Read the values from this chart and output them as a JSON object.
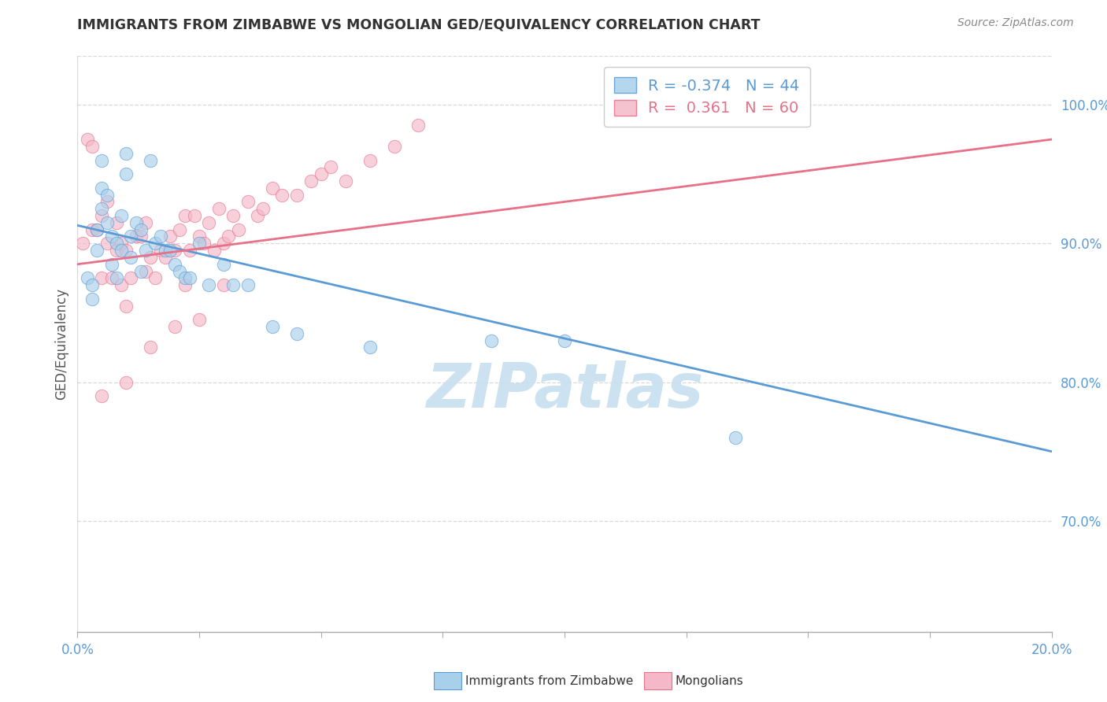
{
  "title": "IMMIGRANTS FROM ZIMBABWE VS MONGOLIAN GED/EQUIVALENCY CORRELATION CHART",
  "source": "Source: ZipAtlas.com",
  "ylabel": "GED/Equivalency",
  "ytick_labels": [
    "100.0%",
    "90.0%",
    "80.0%",
    "70.0%"
  ],
  "ytick_values": [
    1.0,
    0.9,
    0.8,
    0.7
  ],
  "xlim": [
    0.0,
    0.2
  ],
  "ylim": [
    0.62,
    1.035
  ],
  "legend_blue_label": "Immigrants from Zimbabwe",
  "legend_pink_label": "Mongolians",
  "legend_blue_R": "R = -0.374",
  "legend_blue_N": "N = 44",
  "legend_pink_R": "R =  0.361",
  "legend_pink_N": "N = 60",
  "blue_color": "#a8d0eb",
  "pink_color": "#f4b8c8",
  "trendline_blue_color": "#5b9bd5",
  "trendline_pink_color": "#e8718a",
  "watermark": "ZIPatlas",
  "watermark_color": "#c8dff0",
  "blue_scatter_x": [
    0.002,
    0.003,
    0.003,
    0.004,
    0.004,
    0.005,
    0.005,
    0.005,
    0.006,
    0.006,
    0.007,
    0.007,
    0.008,
    0.008,
    0.009,
    0.009,
    0.01,
    0.01,
    0.011,
    0.011,
    0.012,
    0.013,
    0.013,
    0.014,
    0.015,
    0.016,
    0.017,
    0.018,
    0.019,
    0.02,
    0.021,
    0.022,
    0.023,
    0.025,
    0.027,
    0.03,
    0.032,
    0.035,
    0.04,
    0.045,
    0.06,
    0.085,
    0.1,
    0.135
  ],
  "blue_scatter_y": [
    0.875,
    0.87,
    0.86,
    0.91,
    0.895,
    0.94,
    0.925,
    0.96,
    0.935,
    0.915,
    0.905,
    0.885,
    0.9,
    0.875,
    0.92,
    0.895,
    0.965,
    0.95,
    0.905,
    0.89,
    0.915,
    0.91,
    0.88,
    0.895,
    0.96,
    0.9,
    0.905,
    0.895,
    0.895,
    0.885,
    0.88,
    0.875,
    0.875,
    0.9,
    0.87,
    0.885,
    0.87,
    0.87,
    0.84,
    0.835,
    0.825,
    0.83,
    0.83,
    0.76
  ],
  "pink_scatter_x": [
    0.001,
    0.002,
    0.003,
    0.003,
    0.004,
    0.005,
    0.005,
    0.006,
    0.006,
    0.007,
    0.008,
    0.008,
    0.009,
    0.009,
    0.01,
    0.01,
    0.011,
    0.012,
    0.013,
    0.014,
    0.014,
    0.015,
    0.016,
    0.017,
    0.018,
    0.019,
    0.02,
    0.021,
    0.022,
    0.022,
    0.023,
    0.024,
    0.025,
    0.026,
    0.027,
    0.028,
    0.029,
    0.03,
    0.031,
    0.032,
    0.033,
    0.035,
    0.037,
    0.038,
    0.04,
    0.042,
    0.045,
    0.048,
    0.05,
    0.052,
    0.055,
    0.06,
    0.065,
    0.07,
    0.03,
    0.025,
    0.02,
    0.015,
    0.01,
    0.005
  ],
  "pink_scatter_y": [
    0.9,
    0.975,
    0.91,
    0.97,
    0.91,
    0.875,
    0.92,
    0.9,
    0.93,
    0.875,
    0.895,
    0.915,
    0.87,
    0.9,
    0.855,
    0.895,
    0.875,
    0.905,
    0.905,
    0.915,
    0.88,
    0.89,
    0.875,
    0.895,
    0.89,
    0.905,
    0.895,
    0.91,
    0.87,
    0.92,
    0.895,
    0.92,
    0.905,
    0.9,
    0.915,
    0.895,
    0.925,
    0.9,
    0.905,
    0.92,
    0.91,
    0.93,
    0.92,
    0.925,
    0.94,
    0.935,
    0.935,
    0.945,
    0.95,
    0.955,
    0.945,
    0.96,
    0.97,
    0.985,
    0.87,
    0.845,
    0.84,
    0.825,
    0.8,
    0.79
  ],
  "blue_trend_x": [
    0.0,
    0.2
  ],
  "blue_trend_y": [
    0.913,
    0.75
  ],
  "pink_trend_x": [
    0.0,
    0.2
  ],
  "pink_trend_y": [
    0.885,
    0.975
  ],
  "xticks": [
    0.0,
    0.025,
    0.05,
    0.075,
    0.1,
    0.125,
    0.15,
    0.175,
    0.2
  ],
  "grid_color": "#d8d8d8",
  "tick_color": "#aaaaaa"
}
